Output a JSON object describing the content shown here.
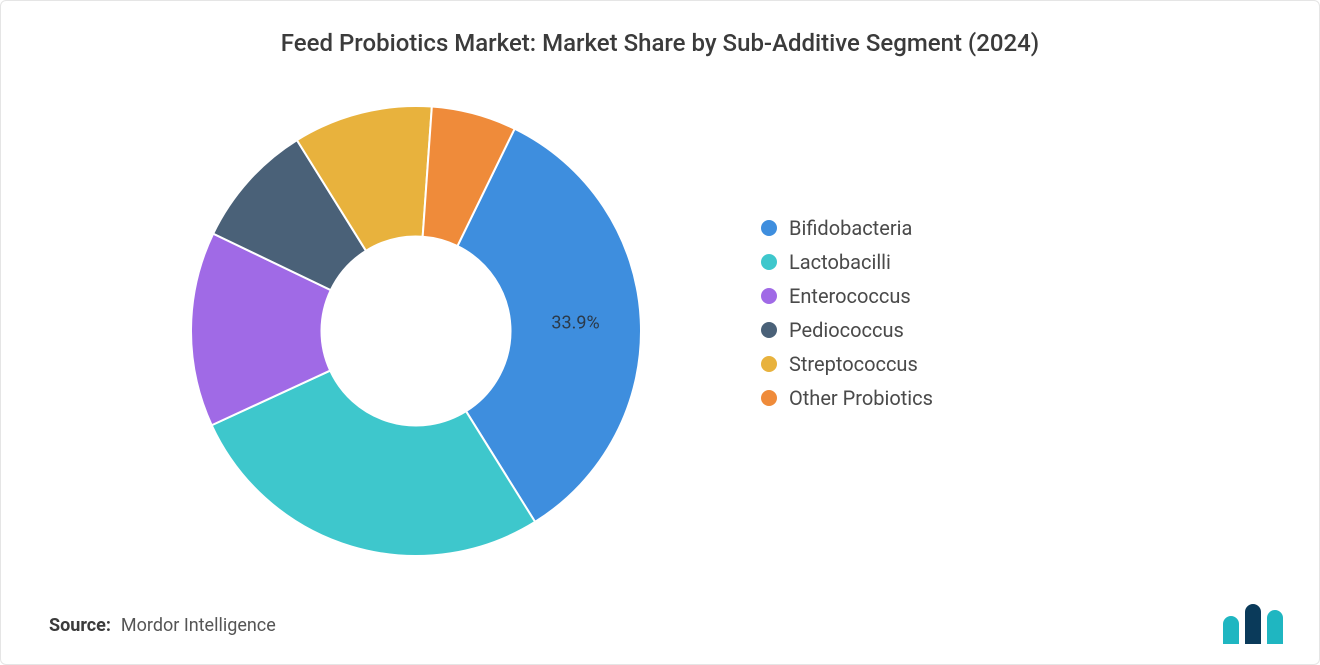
{
  "title": "Feed Probiotics Market: Market Share by Sub-Additive Segment (2024)",
  "source_label": "Source:",
  "source_value": "Mordor Intelligence",
  "chart": {
    "type": "donut",
    "inner_radius_ratio": 0.42,
    "background_color": "#ffffff",
    "label_fontsize": 18,
    "label_color": "#2b3a4a",
    "shown_label_index": 0,
    "shown_label_text": "33.9%",
    "start_angle_deg": -64,
    "segments": [
      {
        "name": "Bifidobacteria",
        "value": 33.9,
        "color": "#3e8ede"
      },
      {
        "name": "Lactobacilli",
        "value": 27.0,
        "color": "#3ec7cc"
      },
      {
        "name": "Enterococcus",
        "value": 14.0,
        "color": "#a06ae6"
      },
      {
        "name": "Pediococcus",
        "value": 9.0,
        "color": "#4a6178"
      },
      {
        "name": "Streptococcus",
        "value": 10.0,
        "color": "#e8b23d"
      },
      {
        "name": "Other Probiotics",
        "value": 6.1,
        "color": "#ef8b3a"
      }
    ]
  },
  "legend_fontsize": 20,
  "logo": {
    "bar1_color": "#1fb6c1",
    "bar2_color": "#0a3a5a",
    "bar3_color": "#1fb6c1"
  }
}
